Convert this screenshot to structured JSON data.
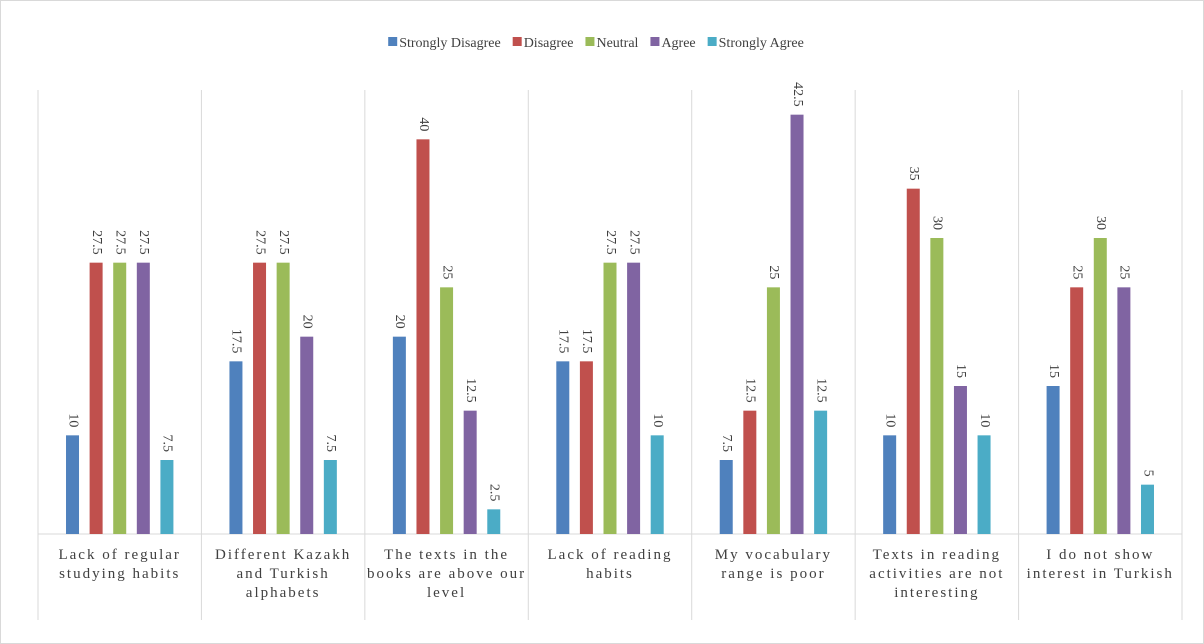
{
  "chart_data": {
    "type": "bar",
    "categories": [
      "Lack of regular studying habits",
      "Different Kazakh and Turkish alphabets",
      "The texts in the books are above our level",
      "Lack of reading habits",
      "My vocabulary range is poor",
      "Texts in reading activities are not interesting",
      "I do not show interest in Turkish"
    ],
    "series": [
      {
        "name": "Strongly Disagree",
        "color": "#4f81bd",
        "values": [
          10,
          17.5,
          20,
          17.5,
          7.5,
          10,
          15
        ]
      },
      {
        "name": "Disagree",
        "color": "#c0504d",
        "values": [
          27.5,
          27.5,
          40,
          17.5,
          12.5,
          35,
          25
        ]
      },
      {
        "name": "Neutral",
        "color": "#9bbb59",
        "values": [
          27.5,
          27.5,
          25,
          27.5,
          25,
          30,
          30
        ]
      },
      {
        "name": "Agree",
        "color": "#8064a2",
        "values": [
          27.5,
          20,
          12.5,
          27.5,
          42.5,
          15,
          25
        ]
      },
      {
        "name": "Strongly Agree",
        "color": "#4bacc6",
        "values": [
          7.5,
          7.5,
          2.5,
          10,
          12.5,
          10,
          5
        ]
      }
    ],
    "ylim": [
      0,
      45
    ],
    "legend": "top"
  }
}
